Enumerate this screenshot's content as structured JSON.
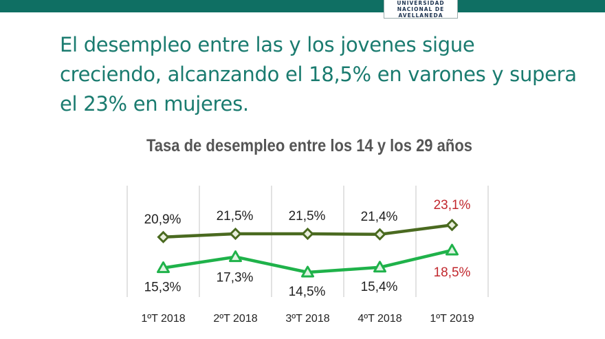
{
  "header": {
    "logo_text": "UNIVERSIDAD NACIONAL DE AVELLANEDA"
  },
  "headline": "El desempleo entre las y los jovenes sigue creciendo, alcanzando el 18,5% en varones y supera el 23% en mujeres.",
  "chart_data": {
    "type": "line",
    "title": "Tasa de desempleo entre los 14 y los 29 años",
    "categories": [
      "1ºT 2018",
      "2ºT 2018",
      "3ºT 2018",
      "4ºT 2018",
      "1ºT 2019"
    ],
    "ylim": [
      10,
      30
    ],
    "grid": "vertical",
    "series": [
      {
        "values": [
          20.9,
          21.5,
          21.5,
          21.4,
          23.1
        ],
        "labels": [
          "20,9%",
          "21,5%",
          "21,5%",
          "21,4%",
          "23,1%"
        ],
        "color": "#4a6a20",
        "marker": "diamond",
        "label_position": "above"
      },
      {
        "values": [
          15.3,
          17.3,
          14.5,
          15.4,
          18.5
        ],
        "labels": [
          "15,3%",
          "17,3%",
          "14,5%",
          "15,4%",
          "18,5%"
        ],
        "color": "#1fb24a",
        "marker": "triangle",
        "label_position": "below"
      }
    ],
    "highlight_color": "#c1272d",
    "highlight_last": true
  }
}
